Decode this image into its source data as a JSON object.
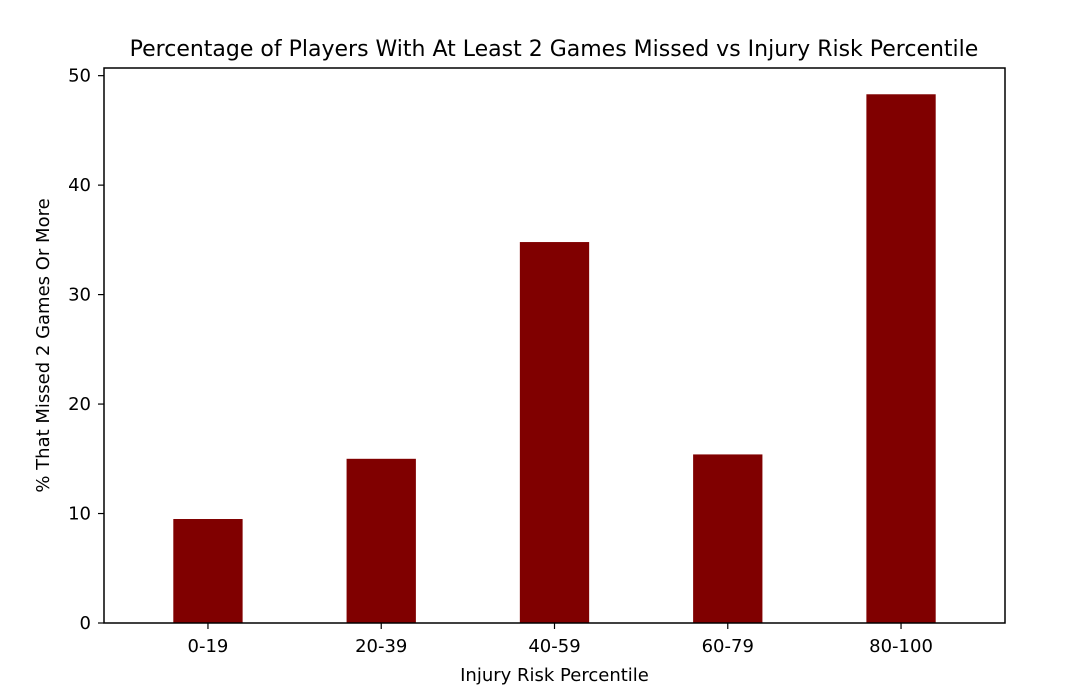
{
  "chart_data": {
    "type": "bar",
    "title": "Percentage of Players With At Least 2 Games Missed vs Injury Risk Percentile",
    "xlabel": "Injury Risk Percentile",
    "ylabel": "% That Missed 2 Games Or More",
    "categories": [
      "0-19",
      "20-39",
      "40-59",
      "60-79",
      "80-100"
    ],
    "values": [
      9.5,
      15.0,
      34.8,
      15.4,
      48.3
    ],
    "ylim": [
      0,
      50.7
    ],
    "yticks": [
      0,
      10,
      20,
      30,
      40,
      50
    ],
    "grid": false,
    "bar_color": "#800000",
    "axis_color": "#000000"
  }
}
